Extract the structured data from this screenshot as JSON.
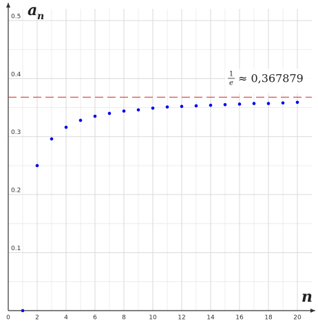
{
  "chart_data": {
    "type": "scatter",
    "x_label": "n",
    "y_label": "a",
    "y_label_subscript": "n",
    "x": [
      1,
      2,
      3,
      4,
      5,
      6,
      7,
      8,
      9,
      10,
      11,
      12,
      13,
      14,
      15,
      16,
      17,
      18,
      19,
      20
    ],
    "series": [
      {
        "color": "#0000ee",
        "values": [
          0,
          0.25,
          0.296,
          0.316,
          0.328,
          0.335,
          0.34,
          0.344,
          0.346,
          0.349,
          0.351,
          0.352,
          0.353,
          0.354,
          0.355,
          0.356,
          0.357,
          0.357,
          0.358,
          0.359
        ]
      }
    ],
    "reference_line": {
      "value": 0.367879,
      "color": "#dd2222",
      "label_numerator": "1",
      "label_denominator": "e",
      "label": "≈ 0,367879"
    },
    "xlim": [
      0,
      21
    ],
    "ylim": [
      0,
      0.52
    ],
    "xticks": [
      0,
      2,
      4,
      6,
      8,
      10,
      12,
      14,
      16,
      18,
      20
    ],
    "yticks": [
      0.1,
      0.2,
      0.3,
      0.4,
      0.5
    ],
    "grid": true
  }
}
